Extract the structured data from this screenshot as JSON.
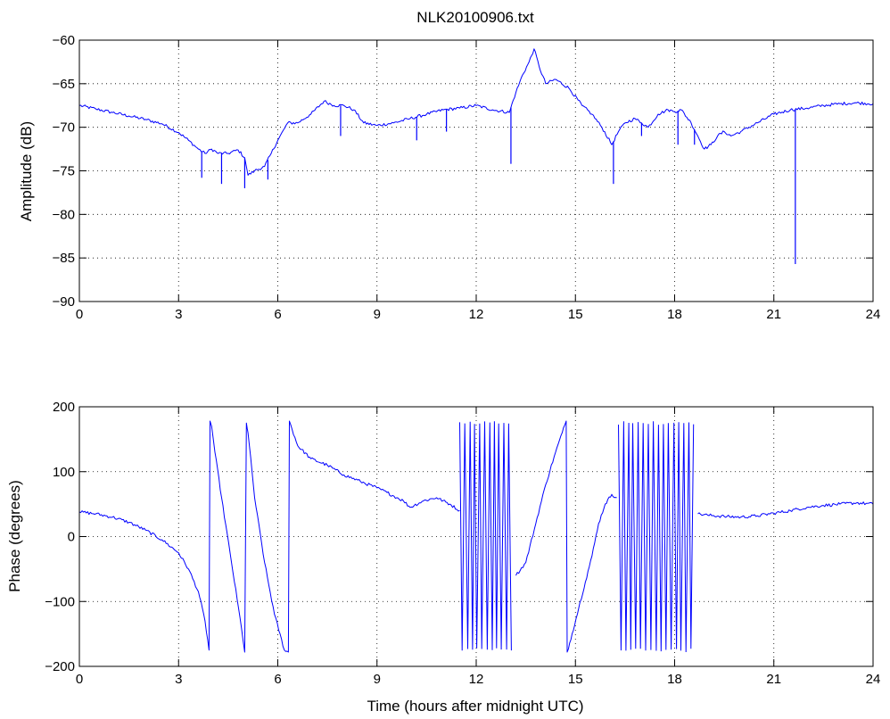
{
  "chart_data": [
    {
      "type": "line",
      "title": "NLK20100906.txt",
      "xlabel": "",
      "ylabel": "Amplitude (dB)",
      "xlim": [
        0,
        24
      ],
      "ylim": [
        -90,
        -60
      ],
      "xticks": [
        0,
        3,
        6,
        9,
        12,
        15,
        18,
        21,
        24
      ],
      "yticks": [
        -90,
        -85,
        -80,
        -75,
        -70,
        -65,
        -60
      ],
      "grid": true,
      "line_color": "#0000ff",
      "series": [
        {
          "x": [
            0,
            0.5,
            1,
            1.5,
            2,
            2.5,
            3,
            3.3,
            3.6,
            3.8,
            4.0,
            4.2,
            4.5,
            4.8,
            5.0,
            5.1,
            5.3,
            5.6,
            5.8,
            6.0,
            6.3,
            6.6,
            7.0,
            7.4,
            7.7,
            8.0,
            8.3,
            8.6,
            9.0,
            9.5,
            10,
            10.5,
            11,
            11.5,
            12,
            12.5,
            13.0,
            13.2,
            13.4,
            13.6,
            13.75,
            13.9,
            14.1,
            14.4,
            14.8,
            15.2,
            15.5,
            15.8,
            16.1,
            16.3,
            16.5,
            16.8,
            17.0,
            17.2,
            17.5,
            17.8,
            18.0,
            18.2,
            18.5,
            18.7,
            18.9,
            19.1,
            19.3,
            19.5,
            19.7,
            20.0,
            20.5,
            21.0,
            21.5,
            22.0,
            22.5,
            23.0,
            23.5,
            24.0
          ],
          "y": [
            -67.5,
            -67.9,
            -68.3,
            -68.7,
            -69.1,
            -69.6,
            -70.6,
            -71.5,
            -72.5,
            -73.0,
            -72.5,
            -73.0,
            -73.0,
            -72.6,
            -73.5,
            -75.5,
            -75.0,
            -74.5,
            -73.0,
            -71.5,
            -69.5,
            -69.5,
            -68.5,
            -67.0,
            -67.5,
            -67.5,
            -68.0,
            -69.5,
            -69.8,
            -69.5,
            -69.0,
            -68.5,
            -68.0,
            -67.8,
            -67.5,
            -68.0,
            -68.3,
            -66.0,
            -64.0,
            -62.5,
            -61.0,
            -63.0,
            -65.0,
            -64.5,
            -65.5,
            -67.5,
            -68.5,
            -70.0,
            -72.0,
            -70.5,
            -69.5,
            -69.0,
            -69.5,
            -70.0,
            -68.5,
            -68.0,
            -68.2,
            -68.0,
            -69.5,
            -71.0,
            -72.5,
            -72.0,
            -71.0,
            -70.5,
            -71.0,
            -70.5,
            -69.5,
            -68.5,
            -68.0,
            -67.8,
            -67.5,
            -67.3,
            -67.2,
            -67.3
          ]
        }
      ],
      "spikes": [
        {
          "x": 3.7,
          "y": -75.8
        },
        {
          "x": 4.3,
          "y": -76.5
        },
        {
          "x": 5.0,
          "y": -77.0
        },
        {
          "x": 5.7,
          "y": -76.0
        },
        {
          "x": 7.9,
          "y": -71.0
        },
        {
          "x": 10.2,
          "y": -71.5
        },
        {
          "x": 11.1,
          "y": -70.5
        },
        {
          "x": 13.05,
          "y": -74.2
        },
        {
          "x": 16.15,
          "y": -76.5
        },
        {
          "x": 17.0,
          "y": -71.0
        },
        {
          "x": 18.1,
          "y": -72.0
        },
        {
          "x": 18.6,
          "y": -72.0
        },
        {
          "x": 21.65,
          "y": -85.7
        }
      ]
    },
    {
      "type": "line",
      "title": "",
      "xlabel": "Time (hours after midnight UTC)",
      "ylabel": "Phase (degrees)",
      "xlim": [
        0,
        24
      ],
      "ylim": [
        -200,
        200
      ],
      "xticks": [
        0,
        3,
        6,
        9,
        12,
        15,
        18,
        21,
        24
      ],
      "yticks": [
        -200,
        -100,
        0,
        100,
        200
      ],
      "grid": true,
      "line_color": "#0000ff",
      "series": [
        {
          "x": [
            0,
            0.5,
            1,
            1.5,
            2,
            2.5,
            3,
            3.3,
            3.6,
            3.8,
            3.92,
            3.95,
            4.0,
            4.1,
            4.3,
            4.6,
            4.9,
            5.0,
            5.05,
            5.1,
            5.3,
            5.6,
            5.9,
            6.2,
            6.32,
            6.35,
            6.6,
            7,
            7.5,
            8,
            8.5,
            9,
            9.3,
            9.6,
            9.8,
            10,
            10.4,
            10.8,
            11.2,
            11.5
          ],
          "y": [
            38,
            35,
            30,
            22,
            10,
            -5,
            -25,
            -50,
            -85,
            -130,
            -175,
            178,
            170,
            130,
            60,
            -40,
            -140,
            -178,
            175,
            160,
            60,
            -40,
            -120,
            -175,
            -178,
            178,
            140,
            120,
            110,
            95,
            85,
            75,
            68,
            60,
            55,
            45,
            55,
            60,
            50,
            40
          ]
        },
        {
          "x": [
            13.2,
            13.5,
            13.8,
            14.1,
            14.4,
            14.6,
            14.72,
            14.75,
            14.9,
            15.1,
            15.3,
            15.5,
            15.7,
            15.9,
            16.1,
            16.25
          ],
          "y": [
            -60,
            -40,
            20,
            80,
            130,
            160,
            178,
            -178,
            -150,
            -110,
            -70,
            -30,
            20,
            50,
            65,
            60
          ]
        },
        {
          "x": [
            18.7,
            19.0,
            19.5,
            20.0,
            20.5,
            21.0,
            21.5,
            22.0,
            22.5,
            23.0,
            23.5,
            24.0
          ],
          "y": [
            35,
            33,
            31,
            30,
            32,
            36,
            40,
            45,
            48,
            50,
            52,
            50
          ]
        }
      ],
      "oscillation_bands": [
        {
          "x_start": 11.5,
          "x_end": 13.1,
          "y_min": -178,
          "y_max": 178
        },
        {
          "x_start": 16.3,
          "x_end": 18.65,
          "y_min": -178,
          "y_max": 178
        }
      ]
    }
  ]
}
